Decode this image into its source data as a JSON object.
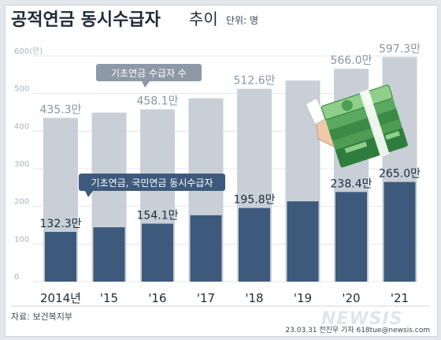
{
  "header": {
    "title": "공적연금 동시수급자",
    "title_suffix": "추이",
    "unit": "단위: 명"
  },
  "source": "자료: 보건복지부",
  "credit": "23.03.31  전진우  기자  618tue@newsis.com",
  "watermark": "NEWSIS",
  "callouts": {
    "basic": "기초연금 수급자 수",
    "both": "기초연금, 국민연금 동시수급자"
  },
  "colors": {
    "title": "#1f2a37",
    "basic_bar": "#c8cfd6",
    "both_bar": "#3d5a7c",
    "basic_label": "#8a96a3",
    "both_label": "#1b2b3e",
    "callout_basic": "#8d99a6",
    "callout_both": "#3d5a7c"
  },
  "chart_data": {
    "type": "bar",
    "categories": [
      "2014년",
      "'15",
      "'16",
      "'17",
      "'18",
      "'19",
      "'20",
      "'21"
    ],
    "series": [
      {
        "name": "기초연금 수급자 수",
        "values": [
          435.3,
          449.5,
          458.1,
          487.5,
          512.6,
          534.6,
          566.0,
          597.3
        ],
        "labels": [
          "435.3만",
          "",
          "458.1만",
          "",
          "512.6만",
          "",
          "566.0만",
          "597.3만"
        ]
      },
      {
        "name": "기초연금, 국민연금 동시수급자",
        "values": [
          132.3,
          144.5,
          154.1,
          176.5,
          195.8,
          213.5,
          238.4,
          265.0
        ],
        "labels": [
          "132.3만",
          "",
          "154.1만",
          "",
          "195.8만",
          "",
          "238.4만",
          "265.0만"
        ]
      }
    ],
    "yticks": [
      "600(만)",
      "500",
      "400",
      "300",
      "200",
      "100",
      "0"
    ],
    "ytick_values": [
      600,
      500,
      400,
      300,
      200,
      100,
      0
    ],
    "ylim": [
      0,
      600
    ],
    "grid": true
  }
}
